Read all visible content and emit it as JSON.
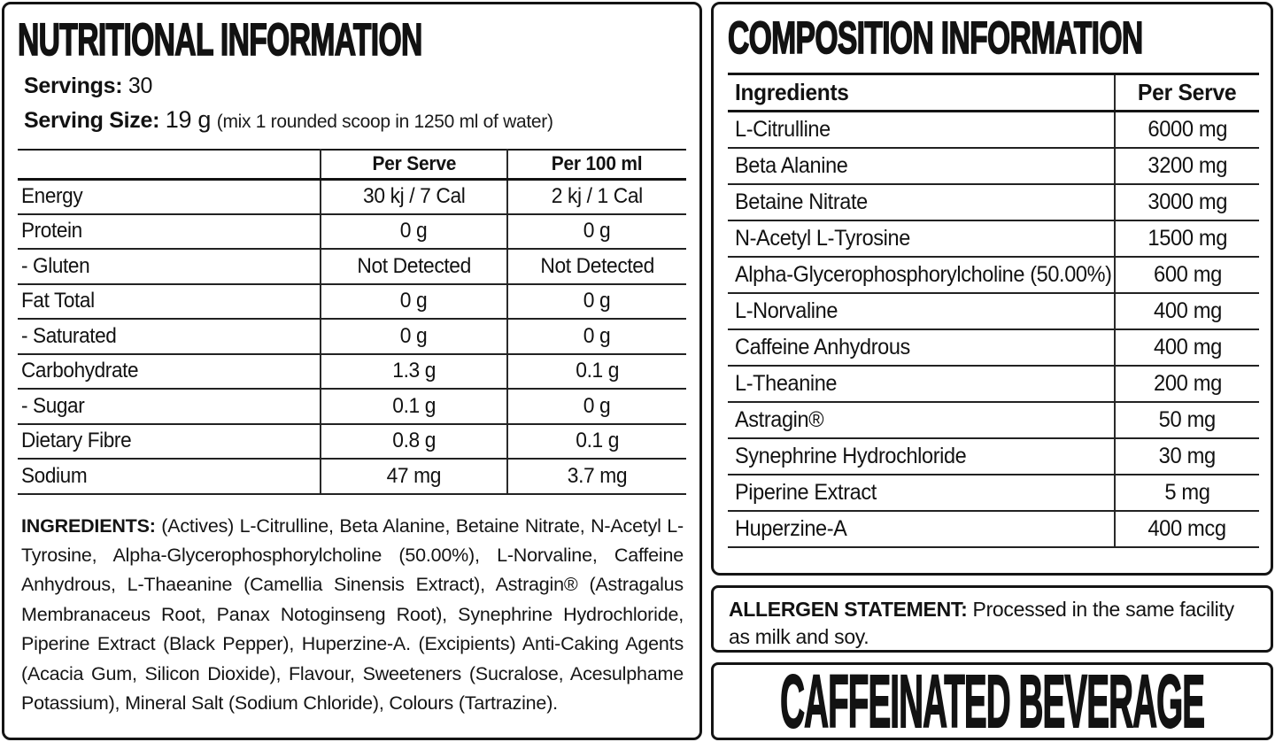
{
  "colors": {
    "ink": "#121212",
    "background": "#ffffff"
  },
  "nutrition_panel": {
    "title": "NUTRITIONAL INFORMATION",
    "servings_label": "Servings:",
    "servings_value": "30",
    "serving_size_label": "Serving Size:",
    "serving_size_value": "19 g",
    "serving_size_note": "(mix 1 rounded scoop in 1250 ml of water)",
    "table": {
      "columns": [
        "",
        "Per Serve",
        "Per 100 ml"
      ],
      "rows": [
        {
          "label": "Energy",
          "per_serve": "30 kj / 7 Cal",
          "per_100ml": "2 kj / 1 Cal"
        },
        {
          "label": "Protein",
          "per_serve": "0 g",
          "per_100ml": "0 g"
        },
        {
          "label": "- Gluten",
          "per_serve": "Not Detected",
          "per_100ml": "Not Detected"
        },
        {
          "label": "Fat Total",
          "per_serve": "0 g",
          "per_100ml": "0 g"
        },
        {
          "label": "- Saturated",
          "per_serve": "0 g",
          "per_100ml": "0 g"
        },
        {
          "label": "Carbohydrate",
          "per_serve": "1.3 g",
          "per_100ml": "0.1 g"
        },
        {
          "label": "- Sugar",
          "per_serve": "0.1 g",
          "per_100ml": "0 g"
        },
        {
          "label": "Dietary Fibre",
          "per_serve": "0.8 g",
          "per_100ml": "0.1 g"
        },
        {
          "label": "Sodium",
          "per_serve": "47 mg",
          "per_100ml": "3.7 mg"
        }
      ]
    },
    "ingredients_label": "INGREDIENTS:",
    "ingredients_text": "(Actives) L-Citrulline, Beta Alanine, Betaine Nitrate, N-Acetyl L-Tyrosine, Alpha-Glycerophosphorylcholine (50.00%), L-Norvaline, Caffeine Anhydrous, L-Thaeanine (Camellia Sinensis Extract), Astragin® (Astragalus Membranaceus Root, Panax Notoginseng Root), Synephrine Hydrochloride, Piperine Extract (Black Pepper), Huperzine-A. (Excipients) Anti-Caking Agents (Acacia Gum, Silicon Dioxide), Flavour, Sweeteners (Sucralose, Acesulphame Potassium), Mineral Salt (Sodium Chloride), Colours (Tartrazine)."
  },
  "composition_panel": {
    "title": "COMPOSITION INFORMATION",
    "table": {
      "columns": [
        "Ingredients",
        "Per Serve"
      ],
      "rows": [
        {
          "name": "L-Citrulline",
          "amount": "6000 mg"
        },
        {
          "name": "Beta Alanine",
          "amount": "3200 mg"
        },
        {
          "name": "Betaine Nitrate",
          "amount": "3000 mg"
        },
        {
          "name": "N-Acetyl L-Tyrosine",
          "amount": "1500 mg"
        },
        {
          "name": "Alpha-Glycerophosphorylcholine (50.00%)",
          "amount": "600 mg"
        },
        {
          "name": "L-Norvaline",
          "amount": "400 mg"
        },
        {
          "name": "Caffeine Anhydrous",
          "amount": "400 mg"
        },
        {
          "name": "L-Theanine",
          "amount": "200 mg"
        },
        {
          "name": "Astragin®",
          "amount": "50 mg"
        },
        {
          "name": "Synephrine Hydrochloride",
          "amount": "30 mg"
        },
        {
          "name": "Piperine Extract",
          "amount": "5 mg"
        },
        {
          "name": "Huperzine-A",
          "amount": "400 mcg"
        }
      ]
    }
  },
  "allergen_panel": {
    "label": "ALLERGEN STATEMENT:",
    "text": "Processed in the same facility as milk and soy."
  },
  "beverage_panel": {
    "title": "CAFFEINATED BEVERAGE"
  }
}
